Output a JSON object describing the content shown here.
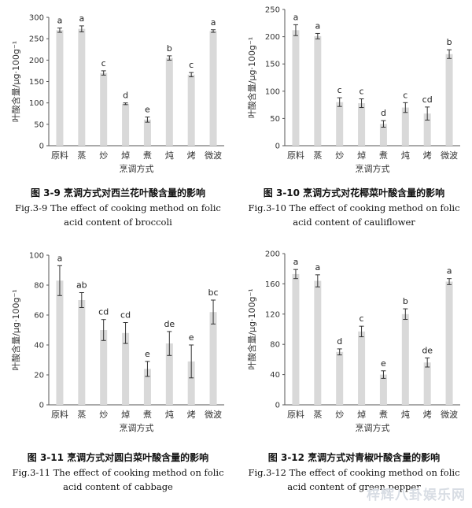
{
  "chart_data": [
    {
      "type": "bar",
      "ylabel": "叶酸含量/μg·100g⁻¹",
      "xlabel": "烹调方式",
      "ylim": [
        0,
        300
      ],
      "yticks": [
        0,
        50,
        100,
        150,
        200,
        250,
        300
      ],
      "categories": [
        "原料",
        "蒸",
        "炒",
        "焯",
        "煮",
        "炖",
        "烤",
        "微波"
      ],
      "values": [
        270,
        273,
        170,
        98,
        61,
        205,
        166,
        268
      ],
      "errors": [
        5,
        7,
        5,
        2,
        6,
        5,
        5,
        3
      ],
      "letters": [
        "a",
        "a",
        "c",
        "d",
        "e",
        "b",
        "c",
        "a"
      ],
      "caption_cn": "图 3-9 烹调方式对西兰花叶酸含量的影响",
      "caption_en_1": "Fig.3-9 The effect of cooking method on folic",
      "caption_en_2": "acid content of broccoli"
    },
    {
      "type": "bar",
      "ylabel": "叶酸含量/μg·100g⁻¹",
      "xlabel": "烹调方式",
      "ylim": [
        0,
        250
      ],
      "yticks": [
        0,
        50,
        100,
        150,
        200,
        250
      ],
      "categories": [
        "原料",
        "蒸",
        "炒",
        "焯",
        "煮",
        "炖",
        "烤",
        "微波"
      ],
      "values": [
        212,
        201,
        80,
        78,
        40,
        70,
        59,
        168
      ],
      "errors": [
        10,
        5,
        8,
        8,
        6,
        9,
        12,
        8
      ],
      "letters": [
        "a",
        "a",
        "c",
        "c",
        "d",
        "c",
        "cd",
        "b"
      ],
      "caption_cn": "图 3-10 烹调方式对花椰菜叶酸含量的影响",
      "caption_en_1": "Fig.3-10 The effect of cooking method on folic",
      "caption_en_2": "acid content of cauliflower"
    },
    {
      "type": "bar",
      "ylabel": "叶酸含量/μg·100g⁻¹",
      "xlabel": "烹调方式",
      "ylim": [
        0,
        100
      ],
      "yticks": [
        0,
        20,
        40,
        60,
        80,
        100
      ],
      "categories": [
        "原料",
        "蒸",
        "炒",
        "焯",
        "煮",
        "炖",
        "烤",
        "微波"
      ],
      "values": [
        83,
        70,
        50,
        48,
        24,
        41,
        29,
        62
      ],
      "errors": [
        10,
        5,
        7,
        7,
        5,
        8,
        11,
        8
      ],
      "letters": [
        "a",
        "ab",
        "cd",
        "cd",
        "e",
        "de",
        "e",
        "bc"
      ],
      "caption_cn": "图 3-11 烹调方式对圆白菜叶酸含量的影响",
      "caption_en_1": "Fig.3-11 The effect of cooking method on folic",
      "caption_en_2": "acid content of cabbage"
    },
    {
      "type": "bar",
      "ylabel": "叶酸含量/μg·100g⁻¹",
      "xlabel": "烹调方式",
      "ylim": [
        0,
        200
      ],
      "yticks": [
        0,
        40,
        80,
        120,
        160,
        200
      ],
      "categories": [
        "原料",
        "蒸",
        "炒",
        "焯",
        "煮",
        "炖",
        "烤",
        "微波"
      ],
      "values": [
        173,
        164,
        70,
        97,
        40,
        120,
        56,
        163
      ],
      "errors": [
        6,
        8,
        4,
        7,
        5,
        7,
        6,
        4
      ],
      "letters": [
        "a",
        "a",
        "d",
        "c",
        "e",
        "b",
        "de",
        "a"
      ],
      "caption_cn": "图 3-12 烹调方式对青椒叶酸含量的影响",
      "caption_en_1": "Fig.3-12 The effect of cooking method on folic",
      "caption_en_2": "acid content of green pepper"
    }
  ],
  "watermark": "梓辉八卦娱乐网"
}
